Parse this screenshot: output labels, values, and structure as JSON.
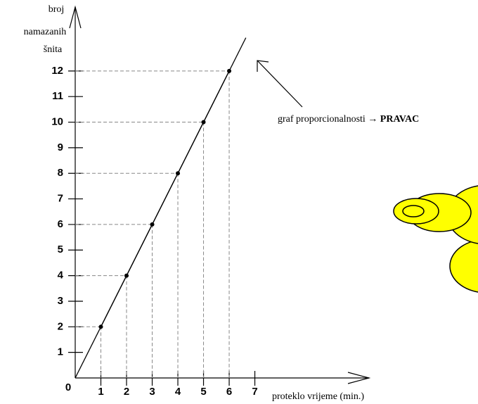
{
  "chart_data": {
    "type": "line",
    "y_label": [
      "broj",
      "namazanih",
      "šnita"
    ],
    "x_label": "proteklo vrijeme (min.)",
    "annotation": {
      "text": "graf proporcionalnosti →",
      "emphasis": "PRAVAC"
    },
    "x": [
      1,
      2,
      3,
      4,
      5,
      6
    ],
    "values": [
      2,
      4,
      6,
      8,
      10,
      12
    ],
    "color": "#000000",
    "xlim": [
      0,
      11.45
    ],
    "ylim": [
      0,
      14.5
    ],
    "xticks": [
      0,
      1,
      2,
      3,
      4,
      5,
      6,
      7
    ],
    "yticks": [
      1,
      2,
      3,
      4,
      5,
      6,
      7,
      8,
      9,
      10,
      11,
      12
    ],
    "guides": true
  }
}
